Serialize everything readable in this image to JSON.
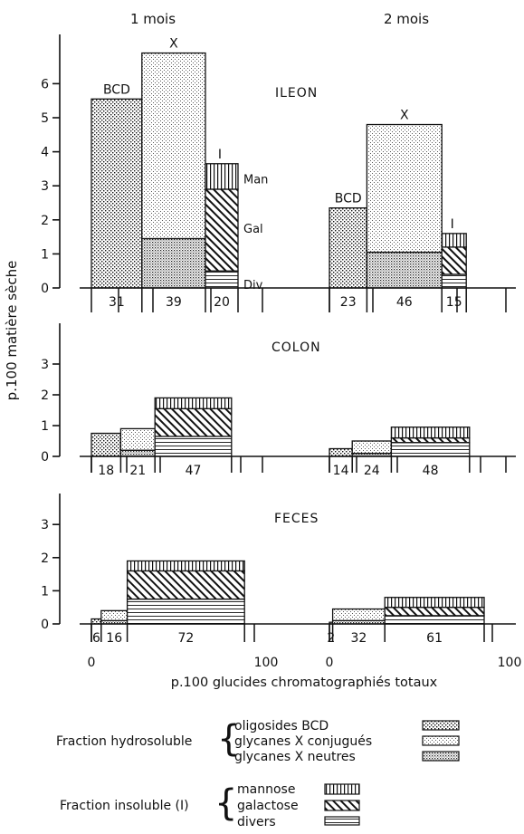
{
  "chart_data": [
    {
      "type": "bar",
      "panel": "ILEON",
      "title": "ILEON",
      "ylim": [
        0,
        7
      ],
      "y_ticks": [
        "0",
        "1",
        "2",
        "3",
        "4",
        "5",
        "6"
      ],
      "groups": [
        {
          "title": "1 mois",
          "bars": [
            {
              "label": "BCD",
              "width_pct": 31,
              "width_label": "31",
              "segments": [
                {
                  "kind": "bcd",
                  "value": 5.55
                }
              ]
            },
            {
              "label": "X",
              "width_pct": 39,
              "width_label": "39",
              "segments": [
                {
                  "kind": "x_neutres",
                  "value": 1.45
                },
                {
                  "kind": "x_conjugues",
                  "value": 5.45
                }
              ]
            },
            {
              "label": "I",
              "width_pct": 20,
              "width_label": "20",
              "segments": [
                {
                  "kind": "divers",
                  "value": 0.5
                },
                {
                  "kind": "galactose",
                  "value": 2.4
                },
                {
                  "kind": "mannose",
                  "value": 0.75
                }
              ],
              "segment_labels": [
                "Div",
                "Gal",
                "Man"
              ]
            }
          ]
        },
        {
          "title": "2 mois",
          "bars": [
            {
              "label": "BCD",
              "width_pct": 23,
              "width_label": "23",
              "segments": [
                {
                  "kind": "bcd",
                  "value": 2.35
                }
              ]
            },
            {
              "label": "X",
              "width_pct": 46,
              "width_label": "46",
              "segments": [
                {
                  "kind": "x_neutres",
                  "value": 1.05
                },
                {
                  "kind": "x_conjugues",
                  "value": 3.75
                }
              ]
            },
            {
              "label": "I",
              "width_pct": 15,
              "width_label": "15",
              "segments": [
                {
                  "kind": "divers",
                  "value": 0.4
                },
                {
                  "kind": "galactose",
                  "value": 0.8
                },
                {
                  "kind": "mannose",
                  "value": 0.4
                }
              ]
            }
          ]
        }
      ]
    },
    {
      "type": "bar",
      "panel": "COLON",
      "title": "COLON",
      "ylim": [
        0,
        4
      ],
      "y_ticks": [
        "0",
        "1",
        "2",
        "3"
      ],
      "groups": [
        {
          "bars": [
            {
              "width_pct": 18,
              "width_label": "18",
              "segments": [
                {
                  "kind": "bcd",
                  "value": 0.75
                }
              ]
            },
            {
              "width_pct": 21,
              "width_label": "21",
              "segments": [
                {
                  "kind": "x_neutres",
                  "value": 0.2
                },
                {
                  "kind": "x_conjugues",
                  "value": 0.7
                }
              ]
            },
            {
              "width_pct": 47,
              "width_label": "47",
              "segments": [
                {
                  "kind": "divers",
                  "value": 0.65
                },
                {
                  "kind": "galactose",
                  "value": 0.9
                },
                {
                  "kind": "mannose",
                  "value": 0.35
                }
              ]
            }
          ]
        },
        {
          "bars": [
            {
              "width_pct": 14,
              "width_label": "14",
              "segments": [
                {
                  "kind": "bcd",
                  "value": 0.25
                }
              ]
            },
            {
              "width_pct": 24,
              "width_label": "24",
              "segments": [
                {
                  "kind": "x_neutres",
                  "value": 0.1
                },
                {
                  "kind": "x_conjugues",
                  "value": 0.4
                }
              ]
            },
            {
              "width_pct": 48,
              "width_label": "48",
              "segments": [
                {
                  "kind": "divers",
                  "value": 0.45
                },
                {
                  "kind": "galactose",
                  "value": 0.15
                },
                {
                  "kind": "mannose",
                  "value": 0.35
                }
              ]
            }
          ]
        }
      ]
    },
    {
      "type": "bar",
      "panel": "FECES",
      "title": "FECES",
      "ylim": [
        0,
        4
      ],
      "y_ticks": [
        "0",
        "1",
        "2",
        "3"
      ],
      "groups": [
        {
          "bars": [
            {
              "width_pct": 6,
              "width_label": "6",
              "segments": [
                {
                  "kind": "bcd",
                  "value": 0.15
                }
              ]
            },
            {
              "width_pct": 16,
              "width_label": "16",
              "segments": [
                {
                  "kind": "x_neutres",
                  "value": 0.1
                },
                {
                  "kind": "x_conjugues",
                  "value": 0.3
                }
              ]
            },
            {
              "width_pct": 72,
              "width_label": "72",
              "segments": [
                {
                  "kind": "divers",
                  "value": 0.75
                },
                {
                  "kind": "galactose",
                  "value": 0.85
                },
                {
                  "kind": "mannose",
                  "value": 0.3
                }
              ]
            }
          ]
        },
        {
          "bars": [
            {
              "width_pct": 2,
              "width_label": "2",
              "segments": [
                {
                  "kind": "bcd",
                  "value": 0.05
                }
              ]
            },
            {
              "width_pct": 32,
              "width_label": "32",
              "segments": [
                {
                  "kind": "x_neutres",
                  "value": 0.1
                },
                {
                  "kind": "x_conjugues",
                  "value": 0.35
                }
              ]
            },
            {
              "width_pct": 61,
              "width_label": "61",
              "segments": [
                {
                  "kind": "divers",
                  "value": 0.25
                },
                {
                  "kind": "galactose",
                  "value": 0.25
                },
                {
                  "kind": "mannose",
                  "value": 0.3
                }
              ]
            }
          ]
        }
      ],
      "x_end_labels": [
        "0",
        "100",
        "0",
        "100"
      ]
    }
  ],
  "ylabel": "p.100 matière sèche",
  "xlabel": "p.100 glucides chromatographiés totaux",
  "legend": {
    "hydro_label": "Fraction hydrosoluble",
    "hydro_items": [
      {
        "kind": "bcd",
        "label": "oligosides BCD"
      },
      {
        "kind": "x_conjugues",
        "label": "glycanes X conjugués"
      },
      {
        "kind": "x_neutres",
        "label": "glycanes X neutres"
      }
    ],
    "insol_label": "Fraction insoluble (I)",
    "insol_items": [
      {
        "kind": "mannose",
        "label": "mannose"
      },
      {
        "kind": "galactose",
        "label": "galactose"
      },
      {
        "kind": "divers",
        "label": "divers"
      }
    ]
  }
}
